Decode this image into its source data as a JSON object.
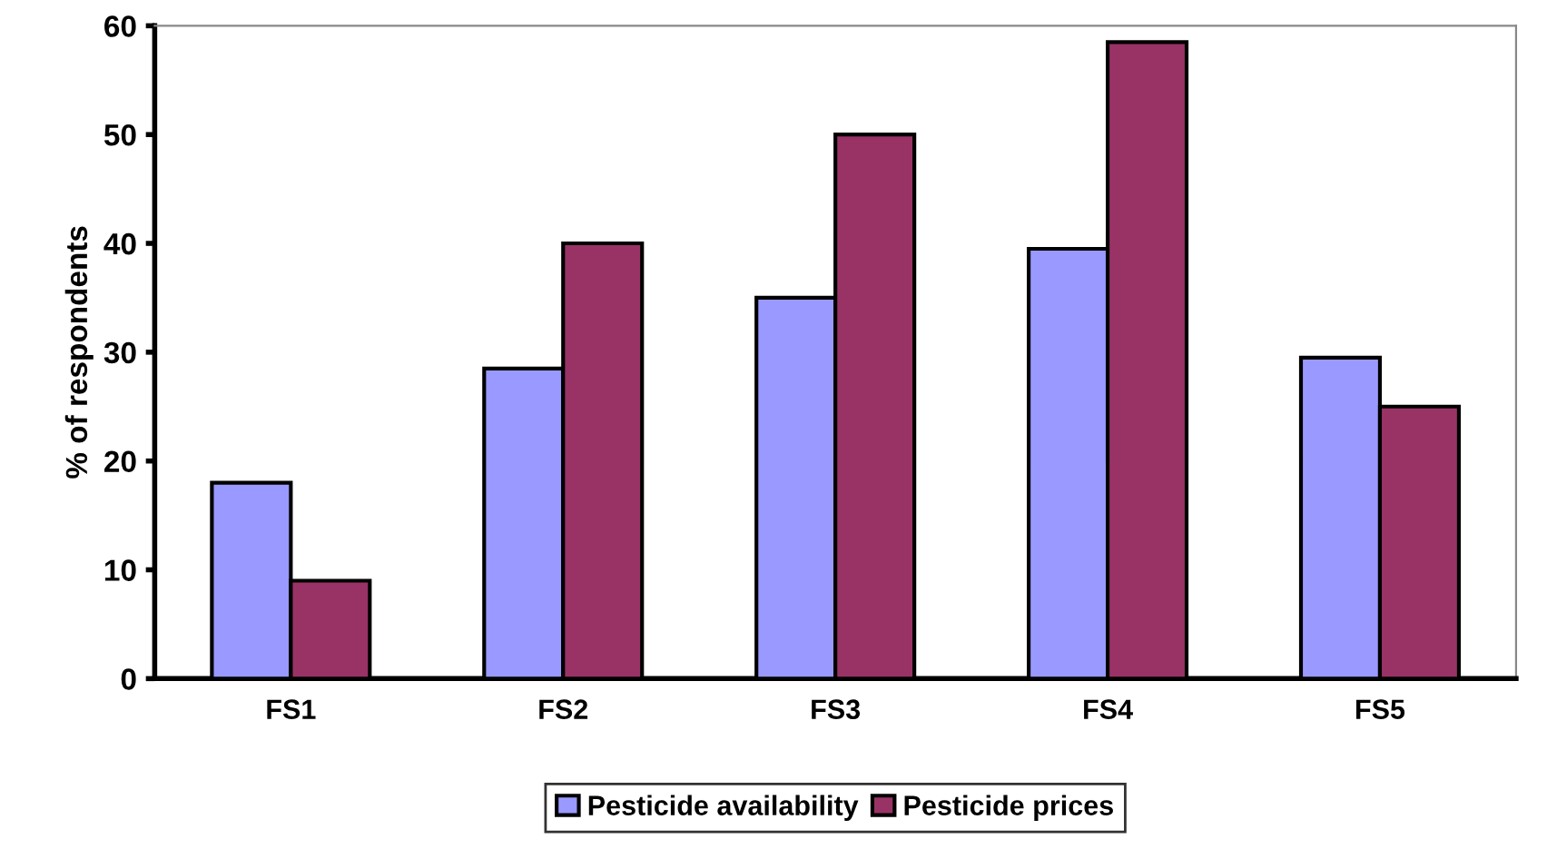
{
  "chart_data": {
    "type": "bar",
    "ylabel": "% of respondents",
    "categories": [
      "FS1",
      "FS2",
      "FS3",
      "FS4",
      "FS5"
    ],
    "series": [
      {
        "name": "Pesticide availability",
        "color": "#9999ff",
        "values": [
          18,
          28.5,
          35,
          39.5,
          29.5
        ]
      },
      {
        "name": "Pesticide prices",
        "color": "#993366",
        "values": [
          9,
          40,
          50,
          58.5,
          25
        ]
      }
    ],
    "ylim": [
      0,
      60
    ],
    "yticks": [
      0,
      10,
      20,
      30,
      40,
      50,
      60
    ],
    "grid": false,
    "legend": "bottom"
  }
}
